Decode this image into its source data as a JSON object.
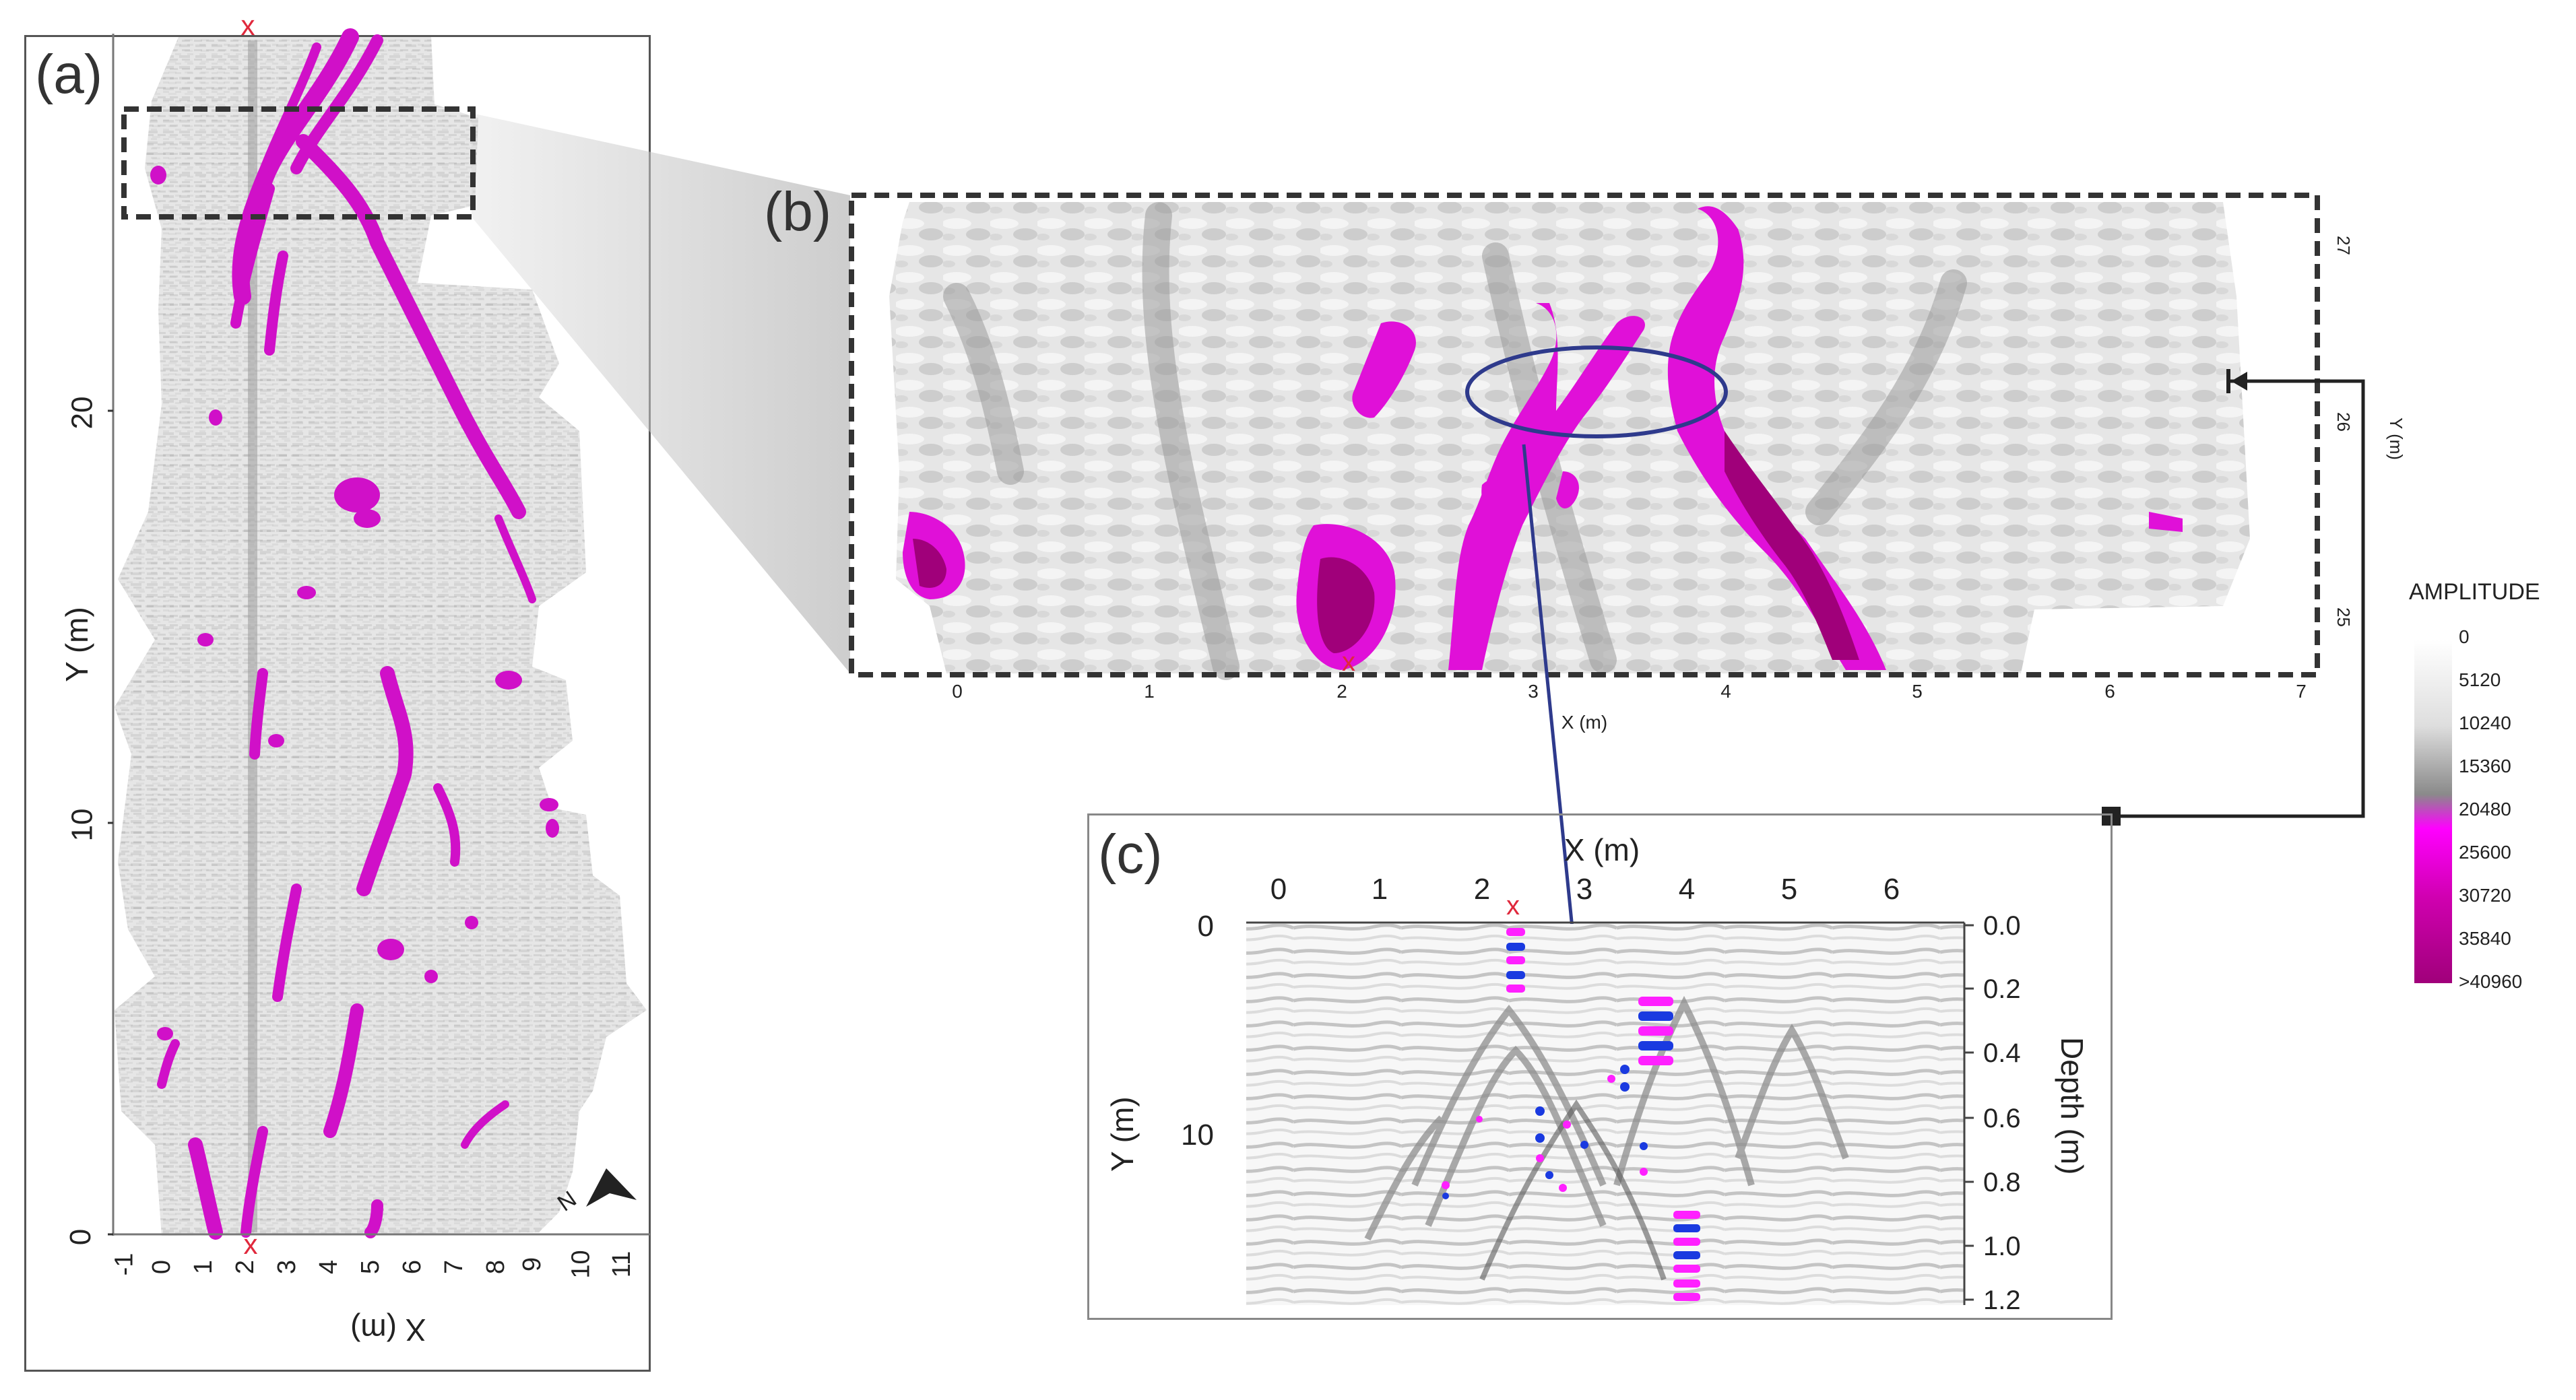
{
  "panels": {
    "a": {
      "label": "(a)",
      "ylabel": "Y (m)",
      "xlabel": "X (m)",
      "y_ticks": [
        "0",
        "10",
        "20"
      ],
      "x_ticks": [
        "-1",
        "0",
        "1",
        "2",
        "3",
        "4",
        "5",
        "6",
        "7",
        "8",
        "9",
        "10",
        "11"
      ],
      "marker": "x",
      "north": "N"
    },
    "b": {
      "label": "(b)",
      "xlabel": "X (m)",
      "ylabel": "Y (m)",
      "x_ticks": [
        "0",
        "1",
        "2",
        "3",
        "4",
        "5",
        "6",
        "7"
      ],
      "y_ticks": [
        "25",
        "26",
        "27"
      ],
      "marker": "x"
    },
    "c": {
      "label": "(c)",
      "xlabel": "X (m)",
      "ylabel": "Y (m)",
      "depth_label": "Depth (m)",
      "x_ticks": [
        "0",
        "1",
        "2",
        "3",
        "4",
        "5",
        "6"
      ],
      "y_ticks": [
        "0",
        "10"
      ],
      "depth_ticks": [
        "0.0",
        "0.2",
        "0.4",
        "0.6",
        "0.8",
        "1.0",
        "1.2"
      ],
      "marker": "x"
    }
  },
  "colorbar": {
    "title": "AMPLITUDE",
    "labels": [
      "0",
      "5120",
      "10240",
      "15360",
      "20480",
      "25600",
      "30720",
      "35840",
      ">40960"
    ],
    "colors": [
      "#ffffff",
      "#d8d8d8",
      "#9a9a9a",
      "#ff00ff",
      "#a0007a"
    ]
  },
  "colors": {
    "anomaly": "#e010d8",
    "anomaly_dark": "#a0007a",
    "ellipse": "#2e3a8c",
    "arrow": "#2e3a8c",
    "marker": "#e0283c"
  }
}
